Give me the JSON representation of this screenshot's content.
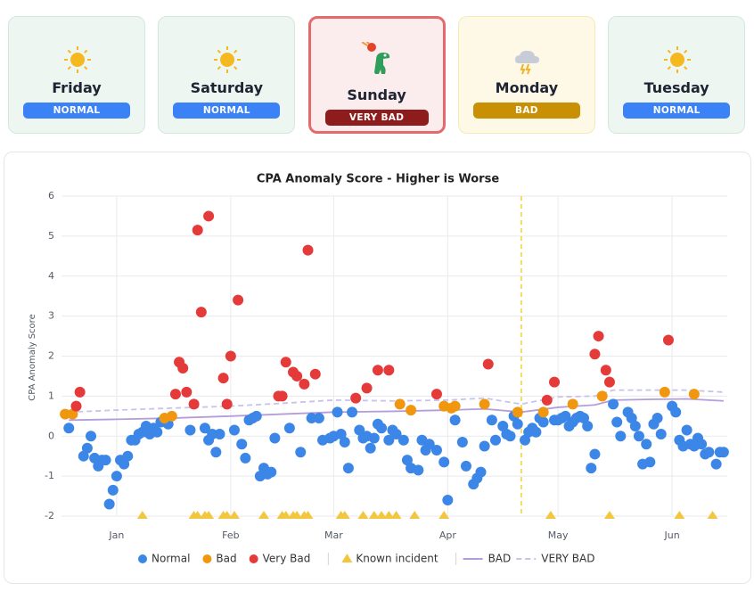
{
  "cards": [
    {
      "day": "Friday",
      "status": "NORMAL",
      "icon": "sun",
      "background": "#eef6f2",
      "border": "#d3e8dd",
      "badge_color": "#3b82f6"
    },
    {
      "day": "Saturday",
      "status": "NORMAL",
      "icon": "sun",
      "background": "#eef6f2",
      "border": "#d3e8dd",
      "badge_color": "#3b82f6"
    },
    {
      "day": "Sunday",
      "status": "VERY BAD",
      "icon": "dino",
      "background": "#fbeced",
      "border": "#e46a6e",
      "badge_color": "#8e1c1c"
    },
    {
      "day": "Monday",
      "status": "BAD",
      "icon": "storm",
      "background": "#fdf9e6",
      "border": "#f4ebb4",
      "badge_color": "#c99006"
    },
    {
      "day": "Tuesday",
      "status": "NORMAL",
      "icon": "sun",
      "background": "#eef6f2",
      "border": "#d3e8dd",
      "badge_color": "#3b82f6"
    }
  ],
  "chart_data": {
    "type": "scatter",
    "title": "CPA Anomaly Score - Higher is Worse",
    "ylabel": "CPA Anomaly Score",
    "xlim": [
      -15,
      166
    ],
    "ylim": [
      -2,
      6
    ],
    "xticks": [
      {
        "value": 0,
        "label": "Jan"
      },
      {
        "value": 31,
        "label": "Feb"
      },
      {
        "value": 59,
        "label": "Mar"
      },
      {
        "value": 90,
        "label": "Apr"
      },
      {
        "value": 120,
        "label": "May"
      },
      {
        "value": 151,
        "label": "Jun"
      }
    ],
    "yticks": [
      -2,
      -1,
      0,
      1,
      2,
      3,
      4,
      5,
      6
    ],
    "grid": true,
    "marker_x": 110,
    "marker_color": "#f2dc5d",
    "series": [
      {
        "name": "Normal",
        "kind": "point",
        "color": "#3b86e6",
        "x": [
          -13,
          -9,
          -8,
          -7,
          -6,
          -5,
          -4,
          -3,
          -2,
          -1,
          0,
          1,
          2,
          3,
          4,
          5,
          6,
          7,
          8,
          9,
          10,
          11,
          12,
          14,
          20,
          24,
          25,
          26,
          27,
          28,
          32,
          34,
          35,
          36,
          37,
          38,
          39,
          40,
          41,
          42,
          43,
          47,
          50,
          53,
          55,
          56,
          58,
          59,
          60,
          61,
          62,
          63,
          64,
          66,
          67,
          68,
          69,
          70,
          71,
          72,
          74,
          75,
          76,
          78,
          79,
          80,
          82,
          83,
          84,
          85,
          87,
          89,
          90,
          92,
          94,
          95,
          97,
          98,
          99,
          100,
          102,
          103,
          105,
          106,
          107,
          108,
          109,
          111,
          112,
          113,
          114,
          115,
          116,
          119,
          120,
          121,
          122,
          123,
          124,
          125,
          126,
          127,
          128,
          129,
          130,
          135,
          136,
          137,
          139,
          140,
          141,
          142,
          143,
          144,
          145,
          146,
          147,
          148,
          151,
          152,
          153,
          154,
          155,
          156,
          157,
          158,
          159,
          160,
          161,
          163,
          164,
          165
        ],
        "values": [
          0.2,
          -0.5,
          -0.3,
          0,
          -0.55,
          -0.75,
          -0.6,
          -0.6,
          -1.7,
          -1.35,
          -1,
          -0.6,
          -0.7,
          -0.5,
          -0.1,
          -0.1,
          0.05,
          0.1,
          0.25,
          0.05,
          0.2,
          0.1,
          0.35,
          0.3,
          0.15,
          0.2,
          -0.1,
          0.05,
          -0.4,
          0.05,
          0.15,
          -0.2,
          -0.55,
          0.4,
          0.45,
          0.5,
          -1,
          -0.8,
          -0.95,
          -0.9,
          -0.05,
          0.2,
          -0.4,
          0.45,
          0.45,
          -0.1,
          -0.05,
          0,
          0.6,
          0.05,
          -0.15,
          -0.8,
          0.6,
          0.15,
          -0.05,
          0,
          -0.3,
          -0.05,
          0.3,
          0.2,
          -0.1,
          0.15,
          0.05,
          -0.1,
          -0.6,
          -0.8,
          -0.85,
          -0.1,
          -0.35,
          -0.2,
          -0.35,
          -0.65,
          -1.6,
          0.4,
          -0.15,
          -0.75,
          -1.2,
          -1.05,
          -0.9,
          -0.25,
          0.4,
          -0.1,
          0.25,
          0.05,
          0,
          0.5,
          0.3,
          -0.1,
          0.1,
          0.2,
          0.1,
          0.45,
          0.35,
          0.4,
          0.4,
          0.45,
          0.5,
          0.25,
          0.35,
          0.45,
          0.5,
          0.45,
          0.25,
          -0.8,
          -0.45,
          0.8,
          0.35,
          0,
          0.6,
          0.45,
          0.25,
          0,
          -0.7,
          -0.2,
          -0.65,
          0.3,
          0.45,
          0.05,
          0.75,
          0.6,
          -0.1,
          -0.25,
          0.15,
          -0.2,
          -0.25,
          -0.05,
          -0.2,
          -0.45,
          -0.4,
          -0.7,
          -0.4,
          -0.4
        ]
      },
      {
        "name": "Bad",
        "kind": "point",
        "color": "#f0960f",
        "x": [
          -14,
          -12,
          13,
          15,
          77,
          80,
          89,
          91,
          92,
          100,
          109,
          116,
          124,
          132,
          149,
          157
        ],
        "values": [
          0.55,
          0.55,
          0.45,
          0.5,
          0.8,
          0.65,
          0.75,
          0.7,
          0.75,
          0.8,
          0.6,
          0.6,
          0.8,
          1,
          1.1,
          1.05
        ]
      },
      {
        "name": "Very Bad",
        "kind": "point",
        "color": "#e53a3a",
        "x": [
          -11,
          -10,
          16,
          17,
          18,
          19,
          21,
          22,
          23,
          25,
          29,
          30,
          31,
          33,
          44,
          45,
          46,
          48,
          49,
          51,
          52,
          54,
          65,
          68,
          71,
          74,
          87,
          101,
          117,
          119,
          130,
          131,
          133,
          134,
          150
        ],
        "values": [
          0.75,
          1.1,
          1.05,
          1.85,
          1.7,
          1.1,
          0.8,
          5.15,
          3.1,
          5.5,
          1.45,
          0.8,
          2,
          3.4,
          1,
          1,
          1.85,
          1.6,
          1.5,
          1.3,
          4.65,
          1.55,
          0.95,
          1.2,
          1.65,
          1.65,
          1.05,
          1.8,
          0.9,
          1.35,
          2.05,
          2.5,
          1.65,
          1.35,
          2.4
        ]
      },
      {
        "name": "Known incident",
        "kind": "triangle",
        "color": "#f3c640",
        "x": [
          7,
          21,
          22,
          24,
          25,
          29,
          30,
          32,
          40,
          45,
          46,
          48,
          49,
          51,
          52,
          61,
          62,
          67,
          70,
          72,
          74,
          76,
          81,
          89,
          118,
          134,
          153,
          162
        ],
        "values": [
          -2,
          -2,
          -2,
          -2,
          -2,
          -2,
          -2,
          -2,
          -2,
          -2,
          -2,
          -2,
          -2,
          -2,
          -2,
          -2,
          -2,
          -2,
          -2,
          -2,
          -2,
          -2,
          -2,
          -2,
          -2,
          -2,
          -2,
          -2
        ]
      },
      {
        "name": "BAD",
        "kind": "line",
        "color": "#b39ddb",
        "x": [
          -13,
          0,
          15,
          31,
          45,
          59,
          75,
          90,
          100,
          110,
          120,
          130,
          135,
          145,
          155,
          165
        ],
        "values": [
          0.4,
          0.42,
          0.45,
          0.5,
          0.55,
          0.6,
          0.62,
          0.65,
          0.68,
          0.6,
          0.72,
          0.78,
          0.9,
          0.92,
          0.93,
          0.88
        ]
      },
      {
        "name": "VERY BAD",
        "kind": "dashed-line",
        "color": "#c9c2ea",
        "x": [
          -13,
          0,
          15,
          31,
          45,
          59,
          75,
          90,
          100,
          110,
          120,
          130,
          135,
          145,
          155,
          165
        ],
        "values": [
          0.6,
          0.65,
          0.7,
          0.75,
          0.82,
          0.9,
          0.88,
          0.9,
          0.95,
          0.8,
          0.98,
          1,
          1.15,
          1.15,
          1.15,
          1.1
        ]
      }
    ]
  }
}
